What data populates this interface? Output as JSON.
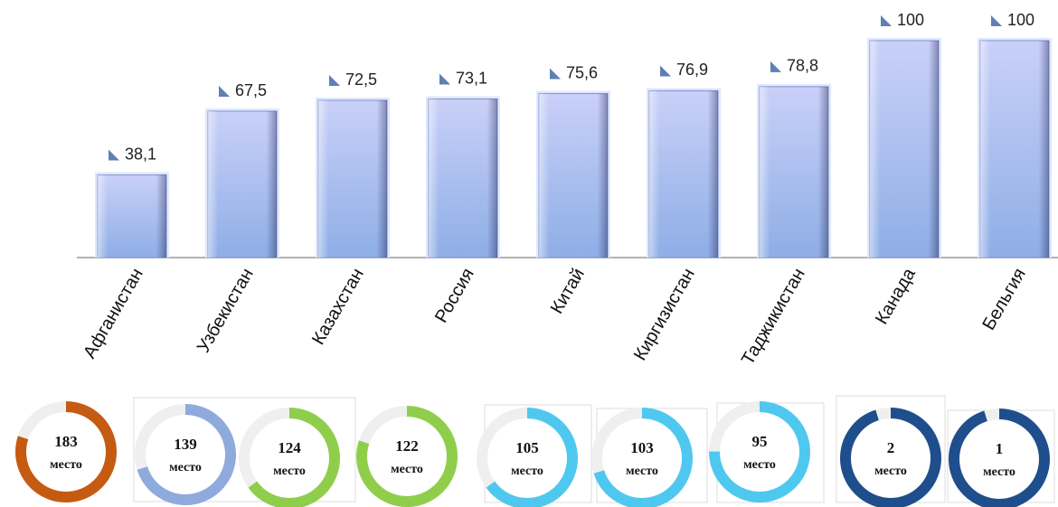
{
  "chart_data": {
    "type": "bar",
    "categories": [
      "Афганистан",
      "Узбекистан",
      "Казахстан",
      "Россия",
      "Китай",
      "Киргизистан",
      "Таджикистан",
      "Канада",
      "Бельгия"
    ],
    "values": [
      38.1,
      67.5,
      72.5,
      73.1,
      75.6,
      76.9,
      78.8,
      100,
      100
    ],
    "value_labels": [
      "38,1",
      "67,5",
      "72,5",
      "73,1",
      "75,6",
      "76,9",
      "78,8",
      "100",
      "100"
    ],
    "color": "#aab9f0",
    "ylim": [
      0,
      100
    ],
    "ranks": [
      183,
      139,
      124,
      122,
      105,
      103,
      95,
      2,
      1
    ],
    "rank_unit": "место",
    "ring_share": [
      80,
      70,
      65,
      80,
      65,
      70,
      75,
      95,
      95
    ],
    "ring_colors": [
      "#c55a11",
      "#8faadc",
      "#8fce4a",
      "#8fce4a",
      "#4fc8f0",
      "#4fc8f0",
      "#4fc8f0",
      "#1f4e8c",
      "#1f4e8c"
    ]
  }
}
